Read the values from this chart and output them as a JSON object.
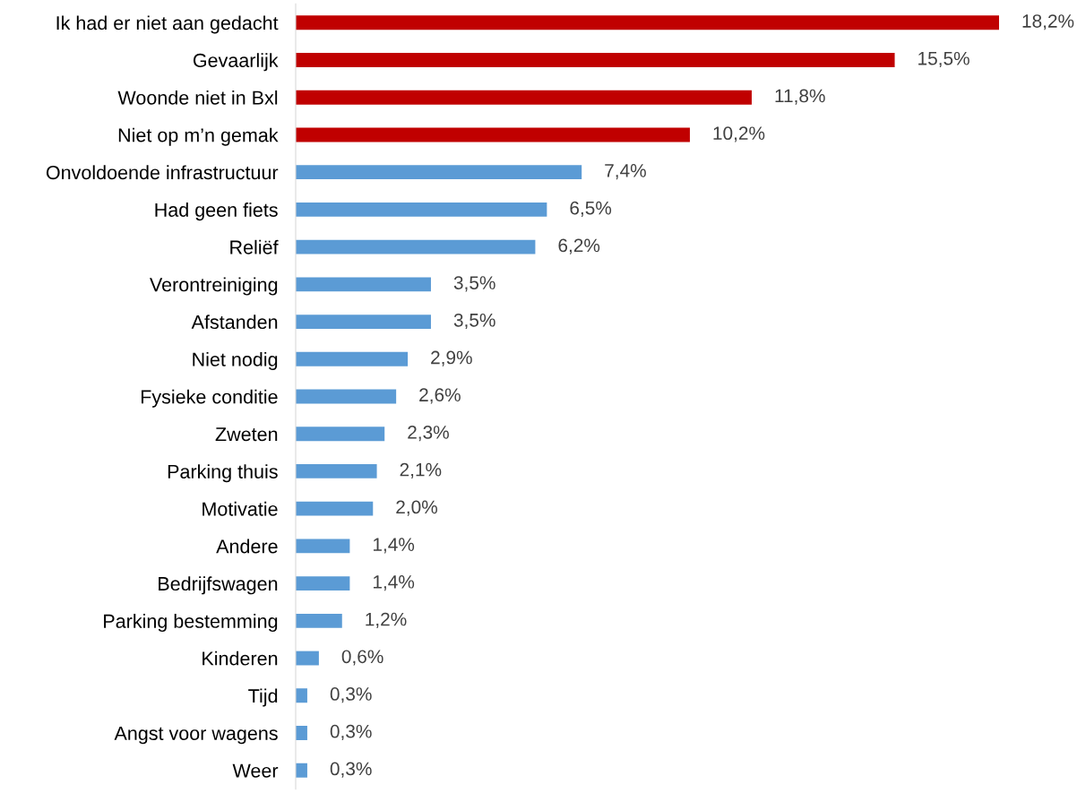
{
  "chart_data": {
    "type": "bar",
    "orientation": "horizontal",
    "categories": [
      "Ik had er niet aan gedacht",
      "Gevaarlijk",
      "Woonde niet in Bxl",
      "Niet op m’n gemak",
      "Onvoldoende infrastructuur",
      "Had geen fiets",
      "Reliëf",
      "Verontreiniging",
      "Afstanden",
      "Niet nodig",
      "Fysieke conditie",
      "Zweten",
      "Parking thuis",
      "Motivatie",
      "Andere",
      "Bedrijfswagen",
      "Parking bestemming",
      "Kinderen",
      "Tijd",
      "Angst voor wagens",
      "Weer"
    ],
    "values": [
      18.2,
      15.5,
      11.8,
      10.2,
      7.4,
      6.5,
      6.2,
      3.5,
      3.5,
      2.9,
      2.6,
      2.3,
      2.1,
      2.0,
      1.4,
      1.4,
      1.2,
      0.6,
      0.3,
      0.3,
      0.3
    ],
    "value_labels": [
      "18,2%",
      "15,5%",
      "11,8%",
      "10,2%",
      "7,4%",
      "6,5%",
      "6,2%",
      "3,5%",
      "3,5%",
      "2,9%",
      "2,6%",
      "2,3%",
      "2,1%",
      "2,0%",
      "1,4%",
      "1,4%",
      "1,2%",
      "0,6%",
      "0,3%",
      "0,3%",
      "0,3%"
    ],
    "colors": [
      "#c00000",
      "#c00000",
      "#c00000",
      "#c00000",
      "#5b9bd5",
      "#5b9bd5",
      "#5b9bd5",
      "#5b9bd5",
      "#5b9bd5",
      "#5b9bd5",
      "#5b9bd5",
      "#5b9bd5",
      "#5b9bd5",
      "#5b9bd5",
      "#5b9bd5",
      "#5b9bd5",
      "#5b9bd5",
      "#5b9bd5",
      "#5b9bd5",
      "#5b9bd5",
      "#5b9bd5"
    ],
    "grid": false,
    "legend": false
  }
}
